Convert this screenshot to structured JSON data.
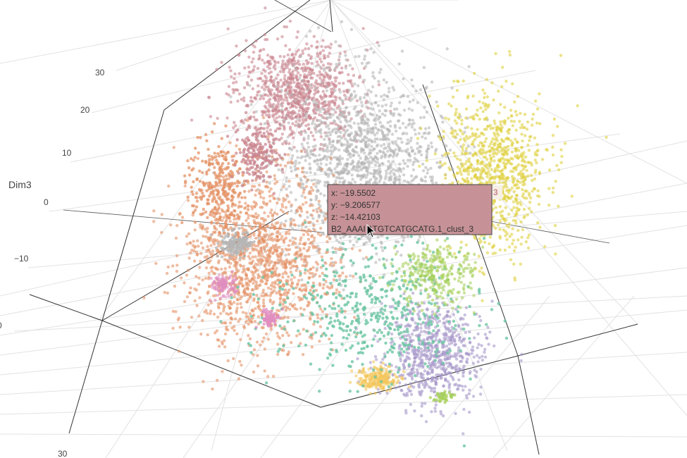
{
  "chart_data": {
    "type": "scatter",
    "dimensions": 3,
    "axes": {
      "z": {
        "title": "Dim3",
        "ticks": [
          "30",
          "20",
          "10",
          "0",
          "−10",
          "0",
          "30"
        ]
      }
    },
    "grid": true,
    "legend": "none",
    "series": [
      {
        "color": "#c9858f",
        "x": -8,
        "y": 2,
        "z": 20
      },
      {
        "color": "#b5b5b5",
        "x": 0,
        "y": 4,
        "z": 8
      },
      {
        "color": "#e0d140",
        "x": 14,
        "y": 6,
        "z": 10
      },
      {
        "color": "#e49367",
        "x": -16,
        "y": -4,
        "z": -8
      },
      {
        "color": "#a797c9",
        "x": 10,
        "y": -12,
        "z": -22
      },
      {
        "color": "#f4c65a",
        "x": 4,
        "y": -14,
        "z": -24
      },
      {
        "color": "#e08ec0",
        "x": -20,
        "y": -6,
        "z": -12
      },
      {
        "color": "#6dc6a4",
        "x": -4,
        "y": -8,
        "z": -14
      },
      {
        "color": "#a7d05a",
        "x": 8,
        "y": -6,
        "z": -6
      }
    ],
    "hover": {
      "x": "x: −19.5502",
      "y": "y: −9.206577",
      "z": "z: −14.42103",
      "label": "B2_AAAI ATGTCATGCATG.1_clust_3",
      "side_label": "3",
      "bg_color": "#c69297",
      "side_color": "#c9858f"
    }
  }
}
